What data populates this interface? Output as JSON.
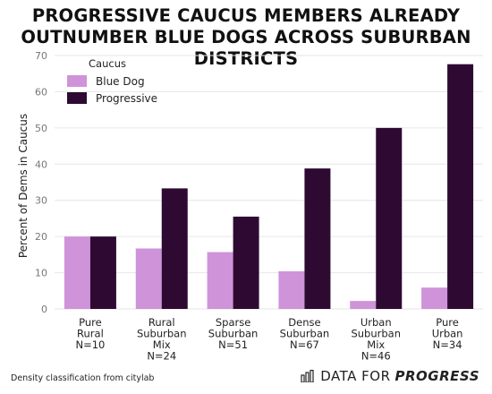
{
  "title_line1": "PROGRESSIVE CAUCUS MEMBERS ALREADY",
  "title_line2": "OUTNUMBER BLUE DOGS ACROSS SUBURBAN DISTRICTS",
  "footer_note": "Density classification from citylab",
  "brand": {
    "prefix": "DATA FOR",
    "emphasis": "PROGRESS",
    "icon": "bar-chart-icon"
  },
  "colors": {
    "blue_dog": "#cf93d9",
    "progressive": "#2e0a33",
    "grid": "#e6e6e6",
    "axis_text": "#777777"
  },
  "chart_data": {
    "type": "bar",
    "ylabel": "Percent of Dems in Caucus",
    "xlabel": "",
    "ylim": [
      0,
      70
    ],
    "yticks": [
      0,
      10,
      20,
      30,
      40,
      50,
      60,
      70
    ],
    "grid": true,
    "legend": {
      "title": "Caucus",
      "position": "top-left"
    },
    "categories": [
      [
        "Pure",
        "Rural",
        "N=10"
      ],
      [
        "Rural",
        "Suburban",
        "Mix",
        "N=24"
      ],
      [
        "Sparse",
        "Suburban",
        "N=51"
      ],
      [
        "Dense",
        "Suburban",
        "N=67"
      ],
      [
        "Urban",
        "Suburban",
        "Mix",
        "N=46"
      ],
      [
        "Pure",
        "Urban",
        "N=34"
      ]
    ],
    "series": [
      {
        "name": "Blue Dog",
        "values": [
          20,
          16.7,
          15.7,
          10.4,
          2.2,
          5.9
        ]
      },
      {
        "name": "Progressive",
        "values": [
          20,
          33.3,
          25.5,
          38.8,
          50,
          67.6
        ]
      }
    ]
  }
}
